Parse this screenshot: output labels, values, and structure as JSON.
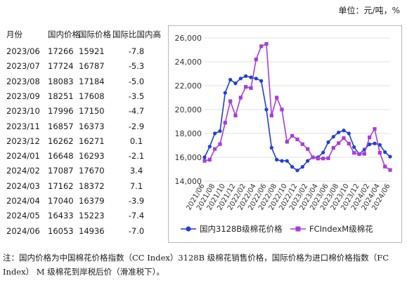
{
  "unit_label": "单位：元/吨，%",
  "table": {
    "headers": [
      "月份",
      "国内价格",
      "国际价格",
      "国际比国内高"
    ],
    "rows": [
      [
        "2023/06",
        "17266",
        "15921",
        "-7.8"
      ],
      [
        "2023/07",
        "17724",
        "16787",
        "-5.3"
      ],
      [
        "2023/08",
        "18083",
        "17184",
        "-5.0"
      ],
      [
        "2023/09",
        "18251",
        "17608",
        "-3.5"
      ],
      [
        "2023/10",
        "17996",
        "17150",
        "-4.7"
      ],
      [
        "2023/11",
        "16857",
        "16373",
        "-2.9"
      ],
      [
        "2023/12",
        "16262",
        "16271",
        "0.1"
      ],
      [
        "2024/01",
        "16648",
        "16293",
        "-2.1"
      ],
      [
        "2024/02",
        "17087",
        "17670",
        "3.4"
      ],
      [
        "2024/03",
        "17162",
        "18372",
        "7.1"
      ],
      [
        "2024/04",
        "17040",
        "16379",
        "-3.9"
      ],
      [
        "2024/05",
        "16433",
        "15223",
        "-7.4"
      ],
      [
        "2024/06",
        "16053",
        "14936",
        "-7.0"
      ]
    ]
  },
  "chart_data": {
    "type": "line",
    "ylim": [
      14000,
      26000
    ],
    "yticks": [
      14000,
      16000,
      18000,
      20000,
      22000,
      24000,
      26000
    ],
    "ytick_labels": [
      "14,000",
      "16,000",
      "18,000",
      "20,000",
      "22,000",
      "24,000",
      "26,000"
    ],
    "x": [
      "2021/06",
      "2021/07",
      "2021/08",
      "2021/09",
      "2021/10",
      "2021/11",
      "2021/12",
      "2022/01",
      "2022/02",
      "2022/03",
      "2022/04",
      "2022/05",
      "2022/06",
      "2022/07",
      "2022/08",
      "2022/09",
      "2022/10",
      "2022/11",
      "2022/12",
      "2023/01",
      "2023/02",
      "2023/03",
      "2023/04",
      "2023/05",
      "2023/06",
      "2023/07",
      "2023/08",
      "2023/09",
      "2023/10",
      "2023/11",
      "2023/12",
      "2024/01",
      "2024/02",
      "2024/03",
      "2024/04",
      "2024/05",
      "2024/06"
    ],
    "xtick_labels": [
      "2021/06",
      "2021/08",
      "2021/10",
      "2021/12",
      "2022/02",
      "2022/04",
      "2022/06",
      "2022/08",
      "2022/10",
      "2022/12",
      "2023/02",
      "2023/04",
      "2023/06",
      "2023/08",
      "2023/10",
      "2023/12",
      "2024/02",
      "2024/04",
      "2024/06"
    ],
    "legend_position": "bottom",
    "series": [
      {
        "name": "国内3128B级棉花价格",
        "color": "#1f3fd6",
        "marker": "circle",
        "values": [
          16000,
          16900,
          18000,
          18200,
          21400,
          22500,
          22200,
          22600,
          22800,
          22700,
          22600,
          22400,
          20000,
          16800,
          15800,
          15700,
          15700,
          15200,
          14900,
          15200,
          15700,
          16000,
          16000,
          16400,
          17266,
          17724,
          18083,
          18251,
          17996,
          16857,
          16262,
          16648,
          17087,
          17162,
          17040,
          16433,
          16053
        ]
      },
      {
        "name": "FCIndexM级棉花",
        "color": "#a83ddb",
        "marker": "square",
        "values": [
          15700,
          15800,
          16700,
          17100,
          18900,
          20700,
          19500,
          21000,
          21900,
          21800,
          24200,
          25300,
          25500,
          19500,
          21000,
          20000,
          17300,
          17800,
          17500,
          17100,
          16700,
          16000,
          15900,
          15900,
          15921,
          16787,
          17184,
          17608,
          17150,
          16373,
          16271,
          16293,
          17670,
          18372,
          16379,
          15223,
          14936
        ]
      }
    ]
  },
  "footnote": "注：国内价格为中国棉花价格指数（CC Index）3128B 级棉花销售价格，国际价格为进口棉价格指数（FC Index） M 级棉花到岸税后价（滑准税下）。"
}
